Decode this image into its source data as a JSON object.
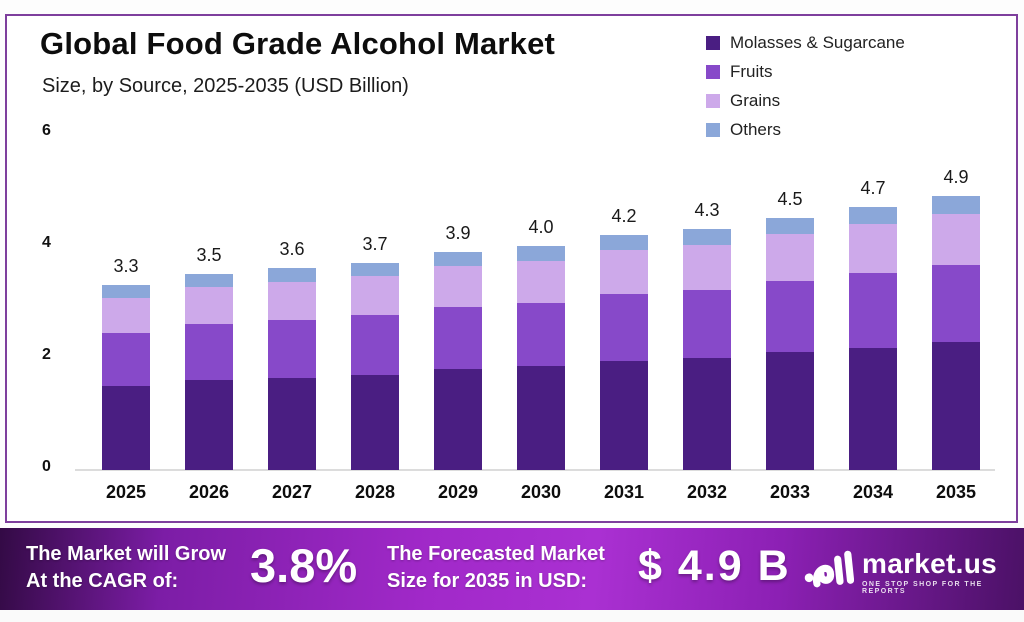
{
  "title": "Global Food Grade Alcohol Market",
  "subtitle": "Size, by Source, 2025-2035 (USD Billion)",
  "colors": {
    "frame_border": "#7e3f9d",
    "banner_purple": "#a129c9",
    "molasses": "#4a1e82",
    "fruits": "#8749c9",
    "grains": "#cda9ea",
    "others": "#8ba7d9"
  },
  "chart_data": {
    "type": "bar",
    "stacked": true,
    "title": "Global Food Grade Alcohol Market Size, by Source, 2025-2035 (USD Billion)",
    "xlabel": "",
    "ylabel": "USD Billion",
    "ylim": [
      0,
      6
    ],
    "y_ticks": [
      0,
      2,
      4,
      6
    ],
    "grid": false,
    "legend_position": "top-right",
    "categories": [
      "2025",
      "2026",
      "2027",
      "2028",
      "2029",
      "2030",
      "2031",
      "2032",
      "2033",
      "2034",
      "2035"
    ],
    "totals": [
      3.3,
      3.5,
      3.6,
      3.7,
      3.9,
      4.0,
      4.2,
      4.3,
      4.5,
      4.7,
      4.9
    ],
    "total_labels": [
      "3.3",
      "3.5",
      "3.6",
      "3.7",
      "3.9",
      "4.0",
      "4.2",
      "4.3",
      "4.5",
      "4.7",
      "4.9"
    ],
    "series": [
      {
        "name": "Molasses & Sugarcane",
        "color": "#4a1e82",
        "values": [
          1.5,
          1.6,
          1.65,
          1.7,
          1.8,
          1.85,
          1.95,
          2.0,
          2.1,
          2.18,
          2.28
        ]
      },
      {
        "name": "Fruits",
        "color": "#8749c9",
        "values": [
          0.95,
          1.0,
          1.03,
          1.06,
          1.11,
          1.14,
          1.19,
          1.22,
          1.27,
          1.33,
          1.38
        ]
      },
      {
        "name": "Grains",
        "color": "#cda9ea",
        "values": [
          0.62,
          0.66,
          0.68,
          0.7,
          0.73,
          0.75,
          0.79,
          0.8,
          0.84,
          0.88,
          0.92
        ]
      },
      {
        "name": "Others",
        "color": "#8ba7d9",
        "values": [
          0.23,
          0.24,
          0.24,
          0.24,
          0.26,
          0.26,
          0.27,
          0.28,
          0.29,
          0.31,
          0.32
        ]
      }
    ]
  },
  "banner": {
    "cagr_label_line1": "The Market will Grow",
    "cagr_label_line2": "At the CAGR of:",
    "cagr_value": "3.8%",
    "forecast_label_line1": "The Forecasted Market",
    "forecast_label_line2": "Size for 2035 in USD:",
    "forecast_value": "$ 4.9 B",
    "brand_name": "market.us",
    "brand_tagline": "ONE STOP SHOP FOR THE REPORTS"
  }
}
